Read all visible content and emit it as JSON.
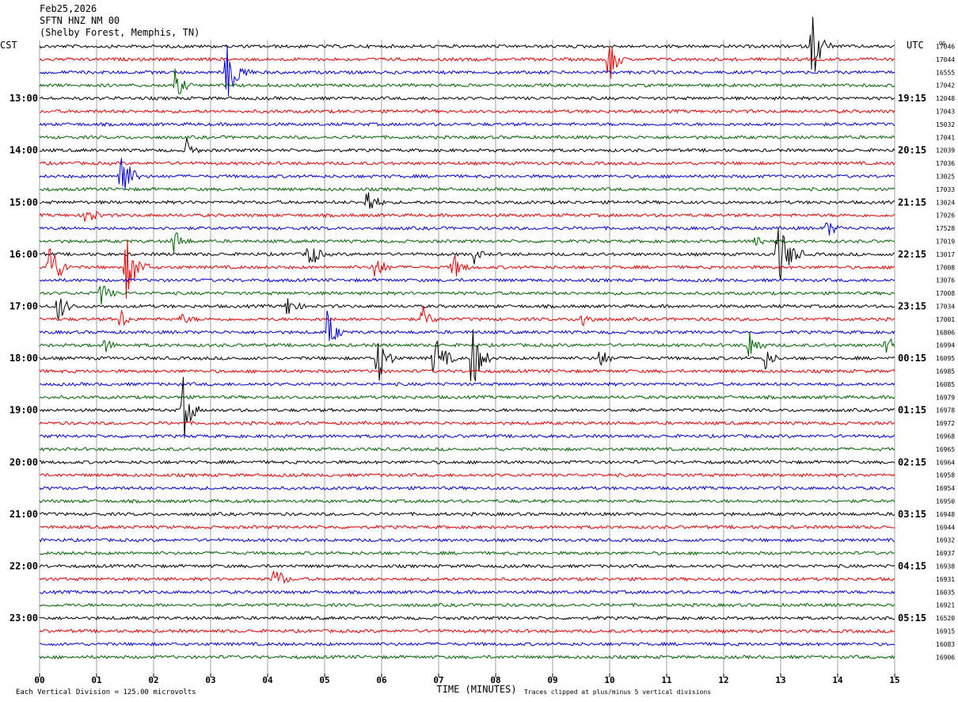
{
  "header": {
    "line1": "Feb25,2026",
    "line2": "SFTN HNZ NM 00",
    "line3": "(Shelby Forest, Memphis, TN)"
  },
  "left_tz": "CST",
  "right_tz": "UTC",
  "right_corner": "OG",
  "footer": {
    "vertical_division": "Each Vertical Division =  125.00 microvolts",
    "xlabel": "TIME (MINUTES)",
    "clip_note": "Traces clipped at plus/minus 5 vertical divisions"
  },
  "chart_data": {
    "type": "line",
    "title": "SFTN HNZ NM 00",
    "xlabel": "TIME (MINUTES)",
    "xlim": [
      0,
      15
    ],
    "x_ticks": [
      "00",
      "01",
      "02",
      "03",
      "04",
      "05",
      "06",
      "07",
      "08",
      "09",
      "10",
      "11",
      "12",
      "13",
      "14",
      "15"
    ],
    "rows_per_hour": 4,
    "row_count": 48,
    "trace_colors": [
      "#000000",
      "#e00000",
      "#0000d0",
      "#006400"
    ],
    "left_hour_labels": [
      "13:00",
      "14:00",
      "15:00",
      "16:00",
      "17:00",
      "18:00",
      "19:00",
      "20:00",
      "21:00",
      "22:00",
      "23:00"
    ],
    "right_hour_labels": [
      "19:15",
      "20:15",
      "21:15",
      "22:15",
      "23:15",
      "00:15",
      "01:15",
      "02:15",
      "03:15",
      "04:15",
      "05:15"
    ],
    "first_labeled_row": 4,
    "right_counts": [
      "17046",
      "17044",
      "16555",
      "17042",
      "12048",
      "17043",
      "15032",
      "17041",
      "12039",
      "17036",
      "13025",
      "17033",
      "13024",
      "17026",
      "17528",
      "17019",
      "13017",
      "17008",
      "13076",
      "17008",
      "17034",
      "17001",
      "16806",
      "16994",
      "16095",
      "16985",
      "16085",
      "16979",
      "16978",
      "16972",
      "16968",
      "16965",
      "16964",
      "16958",
      "16954",
      "16950",
      "16948",
      "16944",
      "16932",
      "16937",
      "16938",
      "16931",
      "16035",
      "16921",
      "16520",
      "16915",
      "16083",
      "16906"
    ],
    "events": [
      {
        "row": 0,
        "minute": 13.55,
        "amp": 2.9,
        "dur": 0.35
      },
      {
        "row": 1,
        "minute": 9.98,
        "amp": 2.2,
        "dur": 0.3
      },
      {
        "row": 2,
        "minute": 3.28,
        "amp": 2.3,
        "dur": 0.45
      },
      {
        "row": 3,
        "minute": 2.38,
        "amp": 1.3,
        "dur": 0.3
      },
      {
        "row": 8,
        "minute": 2.58,
        "amp": 0.9,
        "dur": 0.25
      },
      {
        "row": 10,
        "minute": 1.42,
        "amp": 2.7,
        "dur": 0.35
      },
      {
        "row": 12,
        "minute": 5.75,
        "amp": 1.4,
        "dur": 0.3
      },
      {
        "row": 13,
        "minute": 0.82,
        "amp": 1.1,
        "dur": 0.3
      },
      {
        "row": 14,
        "minute": 13.82,
        "amp": 0.8,
        "dur": 0.3
      },
      {
        "row": 15,
        "minute": 2.35,
        "amp": 1.1,
        "dur": 0.3
      },
      {
        "row": 15,
        "minute": 12.55,
        "amp": 0.8,
        "dur": 0.25
      },
      {
        "row": 16,
        "minute": 4.72,
        "amp": 1.5,
        "dur": 0.3
      },
      {
        "row": 16,
        "minute": 7.62,
        "amp": 0.7,
        "dur": 0.25
      },
      {
        "row": 16,
        "minute": 12.95,
        "amp": 2.9,
        "dur": 0.45
      },
      {
        "row": 17,
        "minute": 0.15,
        "amp": 2.6,
        "dur": 0.4
      },
      {
        "row": 17,
        "minute": 1.52,
        "amp": 2.6,
        "dur": 0.4
      },
      {
        "row": 17,
        "minute": 5.88,
        "amp": 1.3,
        "dur": 0.3
      },
      {
        "row": 17,
        "minute": 7.25,
        "amp": 1.2,
        "dur": 0.3
      },
      {
        "row": 19,
        "minute": 1.08,
        "amp": 1.0,
        "dur": 0.3
      },
      {
        "row": 20,
        "minute": 0.32,
        "amp": 1.3,
        "dur": 0.3
      },
      {
        "row": 20,
        "minute": 4.35,
        "amp": 0.9,
        "dur": 0.3
      },
      {
        "row": 21,
        "minute": 1.42,
        "amp": 0.9,
        "dur": 0.25
      },
      {
        "row": 21,
        "minute": 2.48,
        "amp": 0.4,
        "dur": 0.35
      },
      {
        "row": 21,
        "minute": 6.72,
        "amp": 1.0,
        "dur": 0.3
      },
      {
        "row": 21,
        "minute": 9.5,
        "amp": 0.8,
        "dur": 0.3
      },
      {
        "row": 22,
        "minute": 5.05,
        "amp": 1.9,
        "dur": 0.3
      },
      {
        "row": 23,
        "minute": 1.15,
        "amp": 0.6,
        "dur": 0.25
      },
      {
        "row": 23,
        "minute": 12.45,
        "amp": 1.4,
        "dur": 0.3
      },
      {
        "row": 23,
        "minute": 14.85,
        "amp": 1.1,
        "dur": 0.3
      },
      {
        "row": 24,
        "minute": 5.92,
        "amp": 2.3,
        "dur": 0.35
      },
      {
        "row": 24,
        "minute": 6.92,
        "amp": 2.0,
        "dur": 0.4
      },
      {
        "row": 24,
        "minute": 7.58,
        "amp": 3.0,
        "dur": 0.35
      },
      {
        "row": 24,
        "minute": 9.82,
        "amp": 0.9,
        "dur": 0.3
      },
      {
        "row": 24,
        "minute": 12.72,
        "amp": 0.9,
        "dur": 0.3
      },
      {
        "row": 28,
        "minute": 2.52,
        "amp": 2.6,
        "dur": 0.3
      },
      {
        "row": 41,
        "minute": 4.12,
        "amp": 1.2,
        "dur": 0.3
      }
    ]
  }
}
